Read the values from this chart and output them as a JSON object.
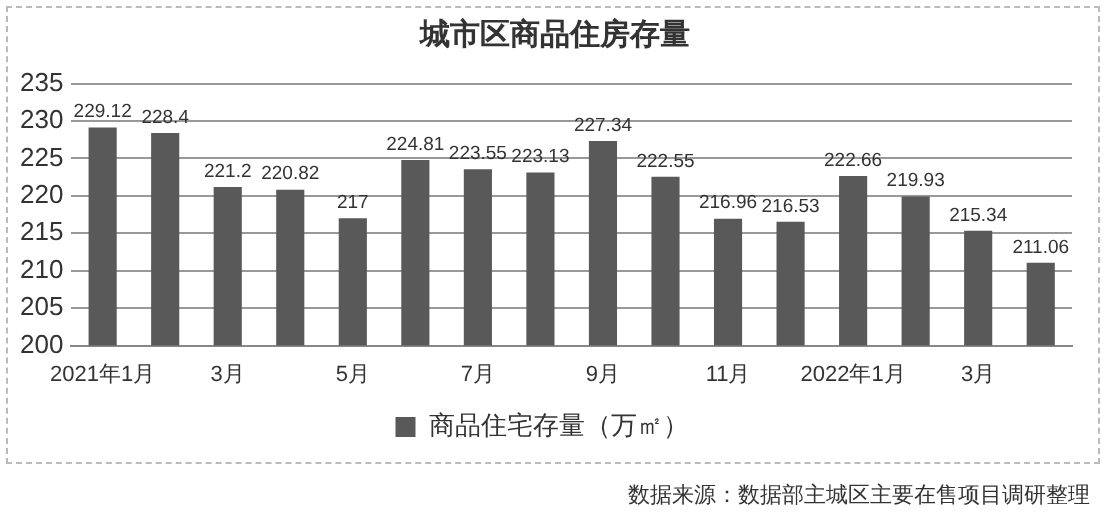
{
  "chart_data": {
    "type": "bar",
    "title": "城市区商品住房存量",
    "categories": [
      "2021年1月",
      null,
      "3月",
      null,
      "5月",
      null,
      "7月",
      null,
      "9月",
      null,
      "11月",
      null,
      "2022年1月",
      null,
      "3月",
      null
    ],
    "series": [
      {
        "name": "商品住宅存量（万㎡）",
        "color": "#595959",
        "values": [
          229.12,
          228.4,
          221.2,
          220.82,
          217,
          224.81,
          223.55,
          223.13,
          227.34,
          222.55,
          216.96,
          216.53,
          222.66,
          219.93,
          215.34,
          211.06
        ]
      }
    ],
    "ylim": [
      200,
      235
    ],
    "yticks": [
      200,
      205,
      210,
      215,
      220,
      225,
      230,
      235
    ],
    "grid": "y",
    "legend": "bottom",
    "data_labels": true,
    "annotations": [
      "数据来源：数据部主城区主要在售项目调研整理"
    ]
  }
}
